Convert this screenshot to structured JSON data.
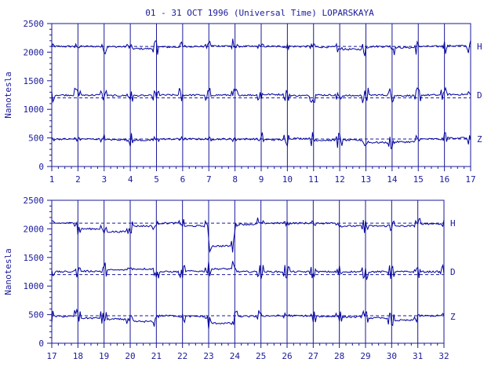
{
  "title": "01 - 31 OCT 1996 (Universal Time) LOPARSKAYA",
  "colors": {
    "ink": "#1a1a9a",
    "trace": "#0000a0",
    "background": "#ffffff"
  },
  "chart_data": [
    {
      "type": "line",
      "panel": "top",
      "ylabel": "Nanotesla",
      "ylim": [
        0,
        2500
      ],
      "yticks": [
        "0",
        "500",
        "1000",
        "1500",
        "2000",
        "2500"
      ],
      "xlim": [
        1,
        17
      ],
      "xticks": [
        "1",
        "2",
        "3",
        "4",
        "5",
        "6",
        "7",
        "8",
        "9",
        "10",
        "11",
        "12",
        "13",
        "14",
        "15",
        "16",
        "17"
      ],
      "grid": "vertical lines at each day",
      "series": [
        {
          "name": "H",
          "baseline": 2100,
          "values": [
            2100,
            2100,
            2095,
            2060,
            2090,
            2100,
            2110,
            2100,
            2100,
            2100,
            2090,
            2050,
            2100,
            2080,
            2100,
            2110
          ]
        },
        {
          "name": "D",
          "baseline": 1200,
          "values": [
            1250,
            1250,
            1240,
            1240,
            1250,
            1250,
            1250,
            1250,
            1260,
            1240,
            1250,
            1240,
            1250,
            1240,
            1250,
            1260
          ]
        },
        {
          "name": "Z",
          "baseline": 480,
          "values": [
            480,
            480,
            470,
            460,
            480,
            480,
            480,
            480,
            470,
            490,
            460,
            460,
            420,
            430,
            480,
            500
          ]
        }
      ]
    },
    {
      "type": "line",
      "panel": "bottom",
      "ylabel": "Nanotesla",
      "ylim": [
        0,
        2500
      ],
      "yticks": [
        "0",
        "500",
        "1000",
        "1500",
        "2000",
        "2500"
      ],
      "xlim": [
        17,
        32
      ],
      "xticks": [
        "17",
        "18",
        "19",
        "20",
        "21",
        "22",
        "23",
        "24",
        "25",
        "26",
        "27",
        "28",
        "29",
        "30",
        "31",
        "32"
      ],
      "grid": "vertical lines at each day",
      "series": [
        {
          "name": "H",
          "baseline": 2100,
          "values": [
            2100,
            2000,
            1950,
            2050,
            2100,
            2050,
            1700,
            2080,
            2100,
            2100,
            2100,
            2050,
            2050,
            2050,
            2090
          ]
        },
        {
          "name": "D",
          "baseline": 1200,
          "values": [
            1250,
            1260,
            1280,
            1300,
            1250,
            1260,
            1300,
            1250,
            1250,
            1250,
            1250,
            1250,
            1250,
            1250,
            1250
          ]
        },
        {
          "name": "Z",
          "baseline": 480,
          "values": [
            470,
            440,
            420,
            380,
            480,
            470,
            350,
            470,
            480,
            480,
            470,
            460,
            440,
            400,
            480
          ]
        }
      ]
    }
  ]
}
